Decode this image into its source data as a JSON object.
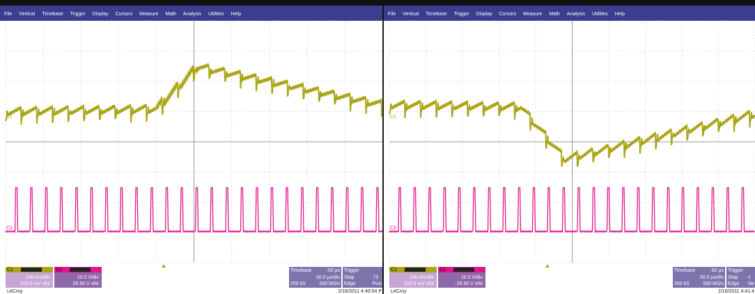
{
  "screens": [
    {
      "menu": [
        "File",
        "Vertical",
        "Timebase",
        "Trigger",
        "Display",
        "Cursors",
        "Measure",
        "Math",
        "Analysis",
        "Utilities",
        "Help"
      ],
      "trace_labels": [
        "C1",
        "C2"
      ],
      "c1": {
        "label": "C1",
        "vdiv": "100 mV/div",
        "offset": "100.0 mV ofst"
      },
      "c2": {
        "label": "C2",
        "vdiv": "10.0 V/div",
        "offset": "-29.90 V ofst"
      },
      "timebase": {
        "title": "Timebase",
        "delay": "-50 µs",
        "tdiv": "50.0 µs/div",
        "samples": "250 kS",
        "rate": "500 MS/s"
      },
      "trigger": {
        "title": "Trigger",
        "level": "73",
        "mode": "Stop",
        "type": "Edge",
        "slope": "Posi"
      },
      "brand": "LeCroy",
      "timestamp": "2/16/2011 4:40:54 P"
    },
    {
      "menu": [
        "File",
        "Vertical",
        "Timebase",
        "Trigger",
        "Display",
        "Cursors",
        "Measure",
        "Math",
        "Analysis",
        "Utilities",
        "Help"
      ],
      "trace_labels": [
        "C1",
        "C2"
      ],
      "c1": {
        "label": "C1",
        "vdiv": "100 mV/div",
        "offset": "100.0 mV ofst"
      },
      "c2": {
        "label": "C2",
        "vdiv": "10.0 V/div",
        "offset": "-29.90 V ofst"
      },
      "timebase": {
        "title": "Timebase",
        "delay": "-50 µs",
        "tdiv": "50.0 µs/div",
        "samples": "250 kS",
        "rate": "500 MS/s"
      },
      "trigger": {
        "title": "Trigger",
        "level": "-1",
        "mode": "Stop",
        "type": "Edge",
        "slope": "Ne"
      },
      "brand": "LeCroy",
      "timestamp": "2/16/2011 4:41:4"
    }
  ]
}
